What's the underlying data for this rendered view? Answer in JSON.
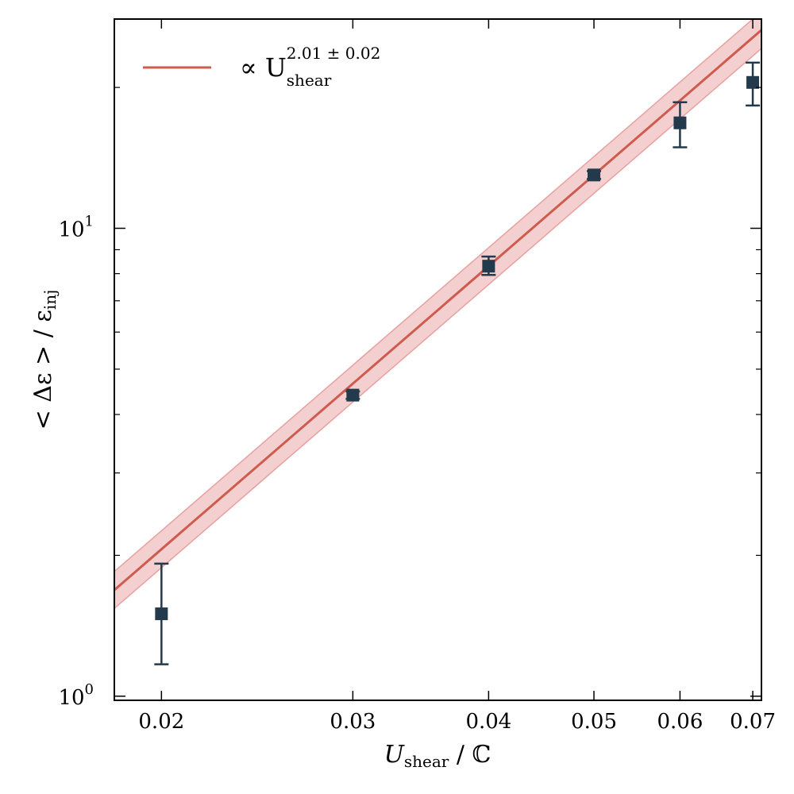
{
  "chart_data": {
    "type": "scatter",
    "xscale": "log",
    "yscale": "log",
    "xlim": [
      0.0181,
      0.0713
    ],
    "ylim": [
      0.98,
      28
    ],
    "xticks": [
      {
        "value": 0.02,
        "label": "0.02"
      },
      {
        "value": 0.03,
        "label": "0.03"
      },
      {
        "value": 0.04,
        "label": "0.04"
      },
      {
        "value": 0.05,
        "label": "0.05"
      },
      {
        "value": 0.06,
        "label": "0.06"
      },
      {
        "value": 0.07,
        "label": "0.07"
      }
    ],
    "yticks_major": [
      {
        "value": 1,
        "base": "10",
        "exp": "0"
      },
      {
        "value": 10,
        "base": "10",
        "exp": "1"
      }
    ],
    "yticks_minor": [
      2,
      3,
      4,
      5,
      6,
      7,
      8,
      9,
      20
    ],
    "xlabel": {
      "main": "U",
      "sub": "shear",
      "rest": " / ℂ"
    },
    "ylabel": {
      "main": "< Δε > / ε",
      "sub": "inj"
    },
    "data_points": {
      "x": [
        0.02,
        0.03,
        0.04,
        0.05,
        0.06,
        0.07
      ],
      "y": [
        1.5,
        4.4,
        8.3,
        13.0,
        16.8,
        20.5
      ],
      "yerr_low": [
        1.17,
        4.32,
        7.95,
        12.75,
        14.9,
        18.3
      ],
      "yerr_high": [
        1.92,
        4.48,
        8.7,
        13.25,
        18.6,
        22.6
      ],
      "color": "#233a4d"
    },
    "fit": {
      "label_main": "∝ U",
      "label_sub": "shear",
      "label_sup": "2.01 ± 0.02",
      "exponent": 2.01,
      "exponent_err": 0.02,
      "ref_x": 0.05,
      "ref_y": 13.0,
      "band_factor": 0.095,
      "color": "#cd5c4f",
      "band_color": "#e8a09f"
    },
    "legend_position": "top-left",
    "grid": false
  }
}
